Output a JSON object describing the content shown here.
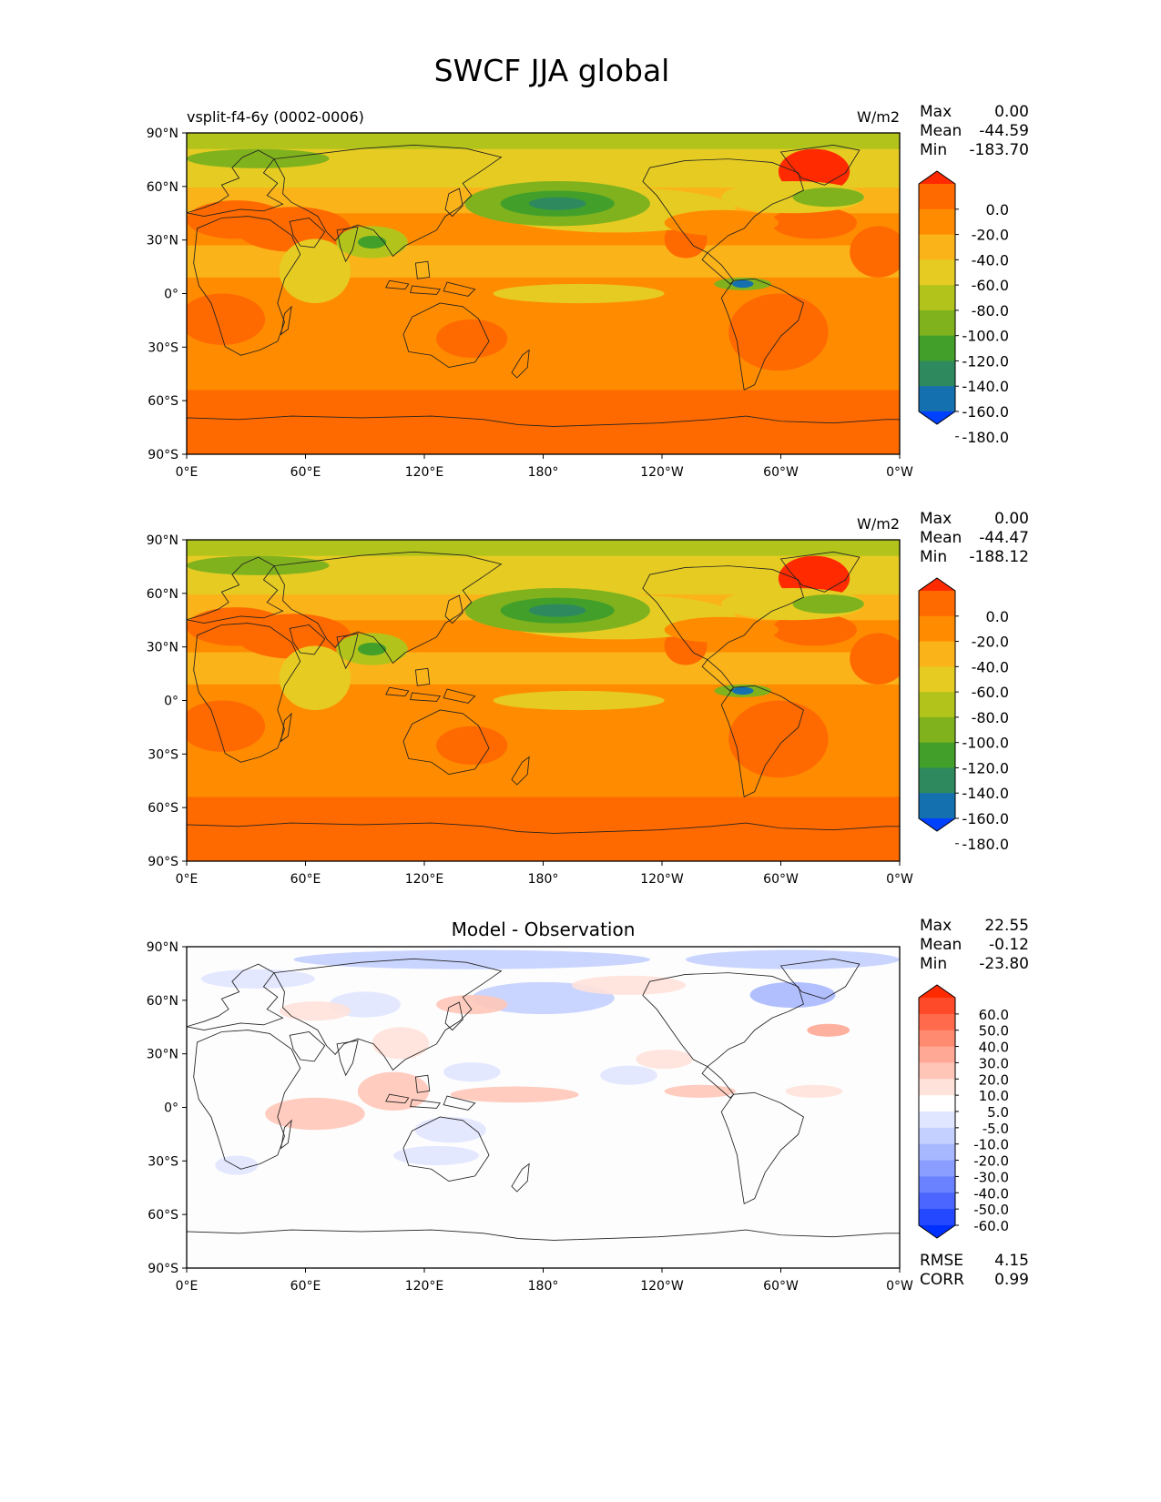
{
  "title": "SWCF JJA global",
  "lat_ticks": [
    "90°N",
    "60°N",
    "30°N",
    "0°",
    "30°S",
    "60°S",
    "90°S"
  ],
  "lon_ticks": [
    "0°E",
    "60°E",
    "120°E",
    "180°",
    "120°W",
    "60°W",
    "0°W"
  ],
  "panels": [
    {
      "left_title": "vsplit-f4-6y (0002-0006)",
      "center_title": "",
      "units": "W/m2",
      "stats": {
        "max_label": "Max",
        "max": "0.00",
        "mean_label": "Mean",
        "mean": "-44.59",
        "min_label": "Min",
        "min": "-183.70"
      },
      "colorbar": {
        "labels": [
          "0.0",
          "-20.0",
          "-40.0",
          "-60.0",
          "-80.0",
          "-100.0",
          "-120.0",
          "-140.0",
          "-160.0",
          "-180.0"
        ],
        "colors": [
          "#ff2a00",
          "#ff6a00",
          "#ff8c00",
          "#fbb31a",
          "#e6cc22",
          "#b2c41c",
          "#80b21e",
          "#42a02a",
          "#2e8a5e",
          "#1570b0",
          "#0040ff"
        ]
      },
      "field": "model"
    },
    {
      "left_title": "",
      "center_title": "",
      "units": "W/m2",
      "stats": {
        "max_label": "Max",
        "max": "0.00",
        "mean_label": "Mean",
        "mean": "-44.47",
        "min_label": "Min",
        "min": "-188.12"
      },
      "colorbar": {
        "labels": [
          "0.0",
          "-20.0",
          "-40.0",
          "-60.0",
          "-80.0",
          "-100.0",
          "-120.0",
          "-140.0",
          "-160.0",
          "-180.0"
        ],
        "colors": [
          "#ff2a00",
          "#ff6a00",
          "#ff8c00",
          "#fbb31a",
          "#e6cc22",
          "#b2c41c",
          "#80b21e",
          "#42a02a",
          "#2e8a5e",
          "#1570b0",
          "#0040ff"
        ]
      },
      "field": "obs"
    },
    {
      "left_title": "",
      "center_title": "Model - Observation",
      "units": "",
      "stats": {
        "max_label": "Max",
        "max": "22.55",
        "mean_label": "Mean",
        "mean": "-0.12",
        "min_label": "Min",
        "min": "-23.80"
      },
      "colorbar": {
        "labels": [
          "60.0",
          "50.0",
          "40.0",
          "30.0",
          "20.0",
          "10.0",
          "5.0",
          "-5.0",
          "-10.0",
          "-20.0",
          "-30.0",
          "-40.0",
          "-50.0",
          "-60.0"
        ],
        "colors": [
          "#ff2a00",
          "#ff4a2a",
          "#ff6a4d",
          "#ff8a70",
          "#ffa896",
          "#ffc6b8",
          "#ffe2da",
          "#ffffff",
          "#e0e6ff",
          "#c4d0ff",
          "#a8b8ff",
          "#8a9eff",
          "#6a82ff",
          "#4a66ff",
          "#2448ff",
          "#0030ff"
        ]
      },
      "rmse_label": "RMSE",
      "rmse": "4.15",
      "corr_label": "CORR",
      "corr": "0.99",
      "field": "diff"
    }
  ]
}
